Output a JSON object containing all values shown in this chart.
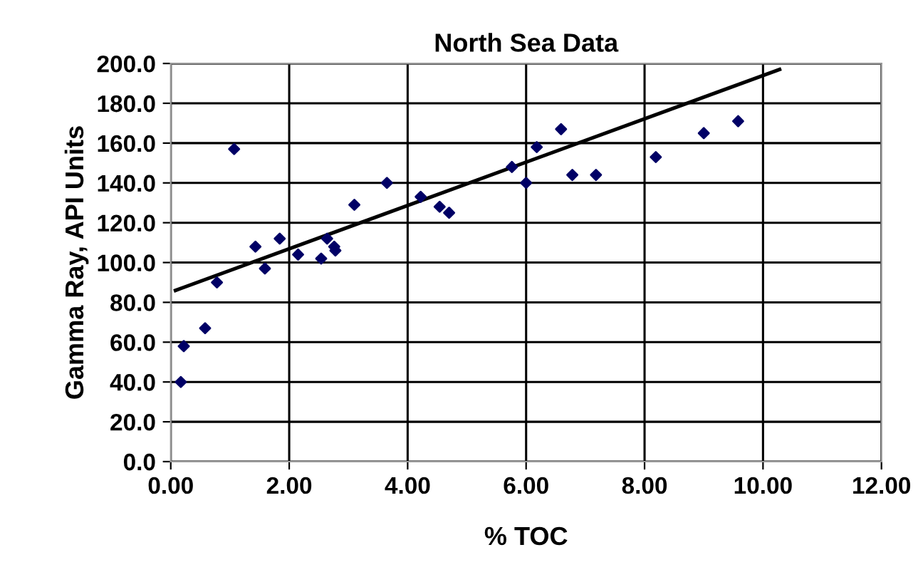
{
  "chart_data": {
    "type": "scatter",
    "title": "North Sea Data",
    "xlabel": "% TOC",
    "ylabel": "Gamma Ray, API Units",
    "xlim": [
      0,
      12
    ],
    "xticks": [
      {
        "value": 0,
        "label": "0.00"
      },
      {
        "value": 2,
        "label": "2.00"
      },
      {
        "value": 4,
        "label": "4.00"
      },
      {
        "value": 6,
        "label": "6.00"
      },
      {
        "value": 8,
        "label": "8.00"
      },
      {
        "value": 10,
        "label": "10.00"
      },
      {
        "value": 12,
        "label": "12.00"
      }
    ],
    "ylim": [
      0,
      200
    ],
    "yticks": [
      {
        "value": 0,
        "label": "0.0"
      },
      {
        "value": 20,
        "label": "20.0"
      },
      {
        "value": 40,
        "label": "40.0"
      },
      {
        "value": 60,
        "label": "60.0"
      },
      {
        "value": 80,
        "label": "80.0"
      },
      {
        "value": 100,
        "label": "100.0"
      },
      {
        "value": 120,
        "label": "120.0"
      },
      {
        "value": 140,
        "label": "140.0"
      },
      {
        "value": 160,
        "label": "160.0"
      },
      {
        "value": 180,
        "label": "180.0"
      },
      {
        "value": 200,
        "label": "200.0"
      }
    ],
    "grid": true,
    "legend": false,
    "series": [
      {
        "color": "#000066",
        "marker": "diamond",
        "x": [
          0.17,
          0.22,
          0.58,
          0.78,
          1.07,
          1.43,
          1.59,
          1.84,
          2.15,
          2.54,
          2.64,
          2.76,
          2.78,
          3.1,
          3.65,
          4.22,
          4.54,
          4.7,
          5.76,
          6.0,
          6.18,
          6.59,
          6.78,
          7.18,
          8.19,
          9.0,
          9.58
        ],
        "values": [
          40,
          58,
          67,
          90,
          157,
          108,
          97,
          112,
          104,
          102,
          112,
          108,
          106,
          129,
          140,
          133,
          128,
          125,
          148,
          140,
          158,
          167,
          144,
          144,
          153,
          165,
          171
        ]
      },
      {
        "type": "line",
        "color": "#000000",
        "marker": "none",
        "line_style": "solid",
        "x": [
          0.08,
          10.28
        ],
        "values": [
          86,
          197
        ]
      }
    ]
  }
}
